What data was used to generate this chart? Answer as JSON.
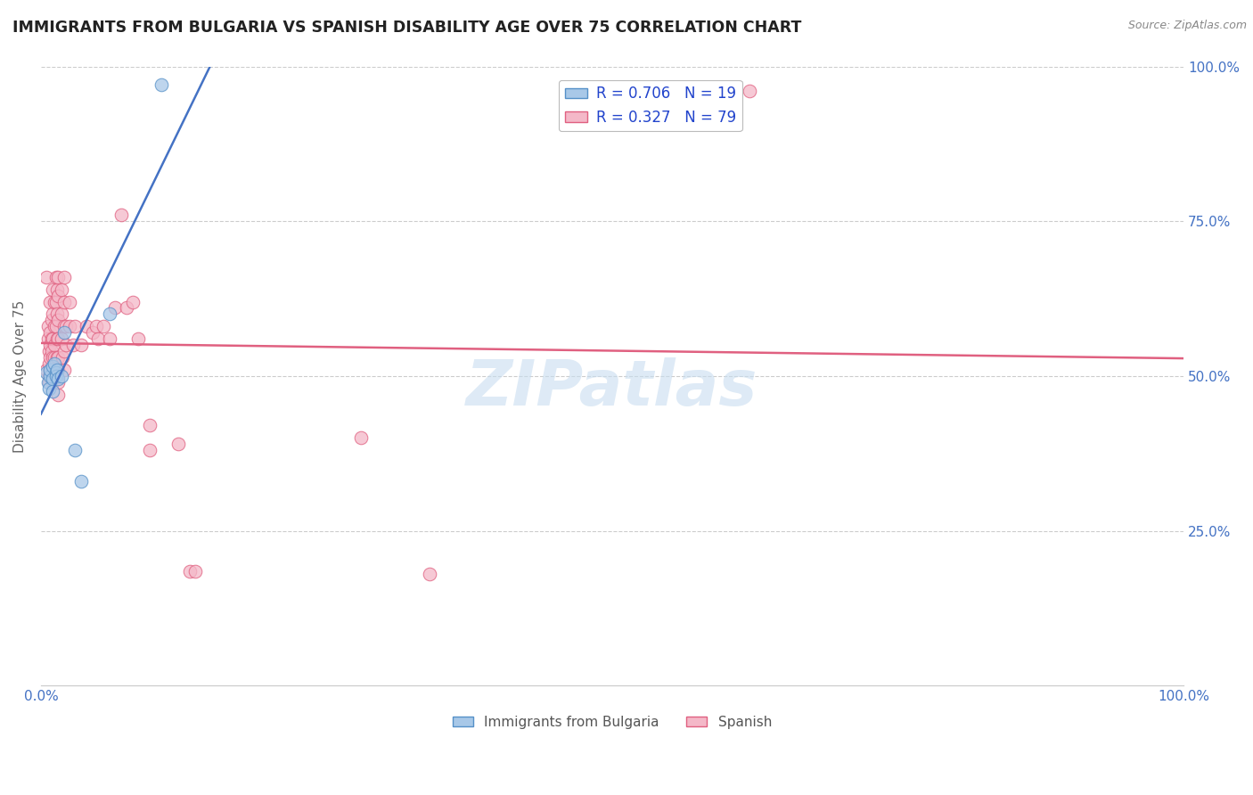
{
  "title": "IMMIGRANTS FROM BULGARIA VS SPANISH DISABILITY AGE OVER 75 CORRELATION CHART",
  "source": "Source: ZipAtlas.com",
  "ylabel": "Disability Age Over 75",
  "xlim": [
    0.0,
    1.0
  ],
  "ylim": [
    0.0,
    1.0
  ],
  "watermark": "ZIPatlas",
  "blue_color": "#a8c8e8",
  "pink_color": "#f4b8c8",
  "blue_edge_color": "#5590c8",
  "pink_edge_color": "#e06080",
  "blue_line_color": "#4472c4",
  "pink_line_color": "#e06080",
  "title_color": "#222222",
  "source_color": "#888888",
  "axis_color": "#4472c4",
  "ylabel_color": "#666666",
  "grid_color": "#cccccc",
  "watermark_color": "#c8ddf0",
  "legend_text_color": "#2244cc",
  "bottom_legend_color": "#555555",
  "blue_scatter": [
    [
      0.005,
      0.505
    ],
    [
      0.006,
      0.49
    ],
    [
      0.007,
      0.48
    ],
    [
      0.008,
      0.5
    ],
    [
      0.008,
      0.51
    ],
    [
      0.01,
      0.515
    ],
    [
      0.01,
      0.495
    ],
    [
      0.01,
      0.475
    ],
    [
      0.012,
      0.52
    ],
    [
      0.013,
      0.505
    ],
    [
      0.013,
      0.5
    ],
    [
      0.014,
      0.51
    ],
    [
      0.015,
      0.495
    ],
    [
      0.018,
      0.5
    ],
    [
      0.02,
      0.57
    ],
    [
      0.03,
      0.38
    ],
    [
      0.035,
      0.33
    ],
    [
      0.06,
      0.6
    ],
    [
      0.105,
      0.97
    ]
  ],
  "pink_scatter": [
    [
      0.005,
      0.66
    ],
    [
      0.005,
      0.51
    ],
    [
      0.006,
      0.58
    ],
    [
      0.006,
      0.56
    ],
    [
      0.007,
      0.54
    ],
    [
      0.007,
      0.52
    ],
    [
      0.007,
      0.5
    ],
    [
      0.007,
      0.49
    ],
    [
      0.008,
      0.62
    ],
    [
      0.008,
      0.57
    ],
    [
      0.008,
      0.55
    ],
    [
      0.008,
      0.53
    ],
    [
      0.008,
      0.51
    ],
    [
      0.009,
      0.59
    ],
    [
      0.009,
      0.56
    ],
    [
      0.009,
      0.54
    ],
    [
      0.01,
      0.64
    ],
    [
      0.01,
      0.6
    ],
    [
      0.01,
      0.56
    ],
    [
      0.01,
      0.53
    ],
    [
      0.01,
      0.51
    ],
    [
      0.01,
      0.49
    ],
    [
      0.012,
      0.62
    ],
    [
      0.012,
      0.58
    ],
    [
      0.012,
      0.55
    ],
    [
      0.012,
      0.53
    ],
    [
      0.013,
      0.66
    ],
    [
      0.013,
      0.62
    ],
    [
      0.013,
      0.58
    ],
    [
      0.014,
      0.64
    ],
    [
      0.014,
      0.6
    ],
    [
      0.014,
      0.56
    ],
    [
      0.014,
      0.53
    ],
    [
      0.014,
      0.51
    ],
    [
      0.015,
      0.66
    ],
    [
      0.015,
      0.63
    ],
    [
      0.015,
      0.59
    ],
    [
      0.015,
      0.56
    ],
    [
      0.015,
      0.53
    ],
    [
      0.015,
      0.51
    ],
    [
      0.015,
      0.49
    ],
    [
      0.015,
      0.47
    ],
    [
      0.018,
      0.64
    ],
    [
      0.018,
      0.6
    ],
    [
      0.018,
      0.56
    ],
    [
      0.019,
      0.53
    ],
    [
      0.02,
      0.66
    ],
    [
      0.02,
      0.62
    ],
    [
      0.02,
      0.58
    ],
    [
      0.02,
      0.54
    ],
    [
      0.02,
      0.51
    ],
    [
      0.022,
      0.58
    ],
    [
      0.022,
      0.55
    ],
    [
      0.025,
      0.62
    ],
    [
      0.025,
      0.58
    ],
    [
      0.028,
      0.55
    ],
    [
      0.03,
      0.58
    ],
    [
      0.035,
      0.55
    ],
    [
      0.04,
      0.58
    ],
    [
      0.045,
      0.57
    ],
    [
      0.048,
      0.58
    ],
    [
      0.05,
      0.56
    ],
    [
      0.055,
      0.58
    ],
    [
      0.06,
      0.56
    ],
    [
      0.065,
      0.61
    ],
    [
      0.07,
      0.76
    ],
    [
      0.075,
      0.61
    ],
    [
      0.08,
      0.62
    ],
    [
      0.085,
      0.56
    ],
    [
      0.095,
      0.38
    ],
    [
      0.095,
      0.42
    ],
    [
      0.12,
      0.39
    ],
    [
      0.13,
      0.185
    ],
    [
      0.135,
      0.185
    ],
    [
      0.28,
      0.4
    ],
    [
      0.34,
      0.18
    ],
    [
      0.62,
      0.96
    ]
  ]
}
